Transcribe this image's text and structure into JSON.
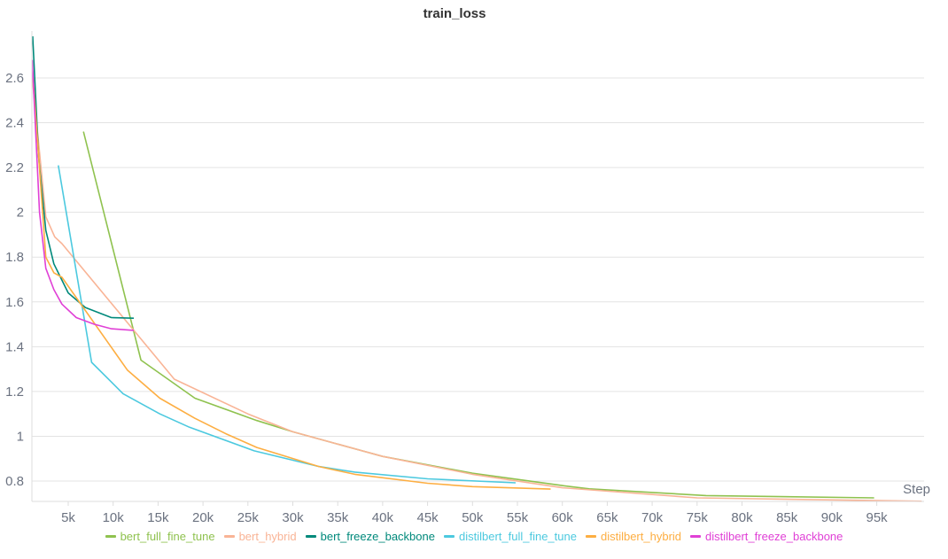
{
  "chart_data": {
    "type": "line",
    "title": "train_loss",
    "xlabel": "Step",
    "ylabel": "",
    "xlim": [
      1000,
      100000
    ],
    "ylim": [
      0.71,
      2.81
    ],
    "grid": true,
    "legend_placement": "bottom",
    "x_ticks": [
      5000,
      10000,
      15000,
      20000,
      25000,
      30000,
      35000,
      40000,
      45000,
      50000,
      55000,
      60000,
      65000,
      70000,
      75000,
      80000,
      85000,
      90000,
      95000
    ],
    "x_tick_labels": [
      "5k",
      "10k",
      "15k",
      "20k",
      "25k",
      "30k",
      "35k",
      "40k",
      "45k",
      "50k",
      "55k",
      "60k",
      "65k",
      "70k",
      "75k",
      "80k",
      "85k",
      "90k",
      "95k"
    ],
    "y_ticks": [
      0.8,
      1,
      1.2,
      1.4,
      1.6,
      1.8,
      2,
      2.2,
      2.4,
      2.6
    ],
    "y_tick_labels": [
      "0.8",
      "1",
      "1.2",
      "1.4",
      "1.6",
      "1.8",
      "2",
      "2.2",
      "2.4",
      "2.6"
    ],
    "series": [
      {
        "name": "bert_full_fine_tune",
        "color": "#8fc24f",
        "x": [
          6700,
          13100,
          19100,
          26000,
          30000,
          40000,
          50000,
          60000,
          63000,
          76000,
          94700
        ],
        "y": [
          2.36,
          1.34,
          1.17,
          1.07,
          1.02,
          0.91,
          0.835,
          0.78,
          0.765,
          0.735,
          0.725
        ]
      },
      {
        "name": "bert_hybrid",
        "color": "#f9b496",
        "x": [
          1000,
          2500,
          3500,
          4300,
          16800,
          25000,
          30000,
          40000,
          50000,
          60000,
          75000,
          100000
        ],
        "y": [
          2.6,
          1.98,
          1.89,
          1.86,
          1.255,
          1.1,
          1.02,
          0.91,
          0.83,
          0.77,
          0.725,
          0.71
        ]
      },
      {
        "name": "bert_freeze_backbone",
        "color": "#00897b",
        "x": [
          1050,
          1700,
          2500,
          3400,
          5000,
          6900,
          9800,
          12300
        ],
        "y": [
          2.786,
          2.25,
          1.92,
          1.77,
          1.64,
          1.575,
          1.53,
          1.527
        ]
      },
      {
        "name": "distilbert_full_fine_tune",
        "color": "#4cc9df",
        "x": [
          3900,
          7600,
          11100,
          15200,
          18500,
          25700,
          32900,
          36900,
          45000,
          54800
        ],
        "y": [
          2.21,
          1.33,
          1.19,
          1.1,
          1.04,
          0.935,
          0.865,
          0.84,
          0.81,
          0.792
        ]
      },
      {
        "name": "distilbert_hybrid",
        "color": "#fdae42",
        "x": [
          1000,
          2500,
          3400,
          4300,
          11600,
          15200,
          19100,
          22600,
          26000,
          32900,
          36900,
          45000,
          50000,
          58700
        ],
        "y": [
          2.65,
          1.8,
          1.73,
          1.71,
          1.295,
          1.17,
          1.08,
          1.01,
          0.95,
          0.865,
          0.83,
          0.79,
          0.775,
          0.764
        ]
      },
      {
        "name": "distilbert_freeze_backbone",
        "color": "#e040d6",
        "x": [
          1000,
          1800,
          2500,
          3400,
          4300,
          5900,
          7900,
          9800,
          12300
        ],
        "y": [
          2.68,
          2.0,
          1.75,
          1.655,
          1.59,
          1.53,
          1.5,
          1.48,
          1.473
        ]
      }
    ]
  }
}
